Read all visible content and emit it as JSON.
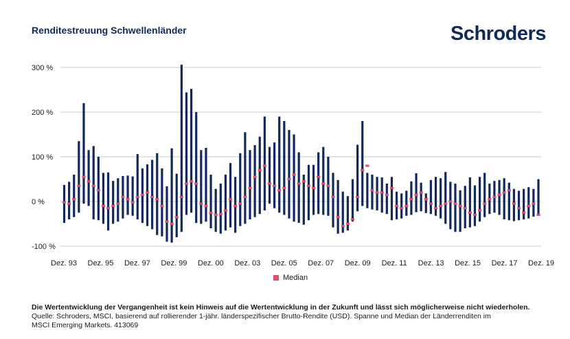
{
  "header": {
    "title": "Renditestreuung Schwellenländer",
    "logo": "Schroders"
  },
  "legend": {
    "median_label": "Median"
  },
  "colors": {
    "range_bar": "#0f2a5a",
    "median": "#e0506e",
    "grid": "#c8c8c8"
  },
  "footer": {
    "disclaimer": "Die Wertentwicklung der Vergangenheit ist kein Hinweis auf die Wertentwicklung in der Zukunft und lässt sich möglicherweise nicht wiederholen.",
    "source_line1": "Quelle: Schroders, MSCI, basierend auf rollierender 1-jähr. länderspezifischer Brutto-Rendite (USD). Spanne und Median der Länderrenditen im",
    "source_line2": "MSCI Emerging Markets. 413069"
  },
  "chart_data": {
    "type": "range_bar",
    "y_ticks": [
      {
        "value": 300,
        "label": "300 %"
      },
      {
        "value": 200,
        "label": "200 %"
      },
      {
        "value": 100,
        "label": "100 %"
      },
      {
        "value": 0,
        "label": "0 %"
      },
      {
        "value": -100,
        "label": "-100 %"
      }
    ],
    "ylim": [
      -100,
      300
    ],
    "x_tick_labels": [
      "Dez. 93",
      "Dez. 95",
      "Dez. 97",
      "Dez. 99",
      "Dez. 00",
      "Dez. 03",
      "Dez. 05",
      "Dez. 07",
      "Dez. 09",
      "Dez. 11",
      "Dez. 13",
      "Dez. 15",
      "Dez. 17",
      "Dez. 19"
    ],
    "grid": true,
    "legend_position": "bottom-center",
    "series": [
      {
        "name": "Median",
        "kind": "median_marker"
      }
    ],
    "high": [
      37,
      44,
      60,
      135,
      220,
      115,
      124,
      100,
      64,
      65,
      46,
      52,
      57,
      58,
      56,
      106,
      74,
      83,
      93,
      108,
      74,
      34,
      119,
      62,
      306,
      244,
      252,
      200,
      115,
      120,
      60,
      28,
      40,
      60,
      86,
      55,
      108,
      155,
      115,
      126,
      145,
      190,
      122,
      132,
      190,
      180,
      160,
      150,
      110,
      60,
      82,
      82,
      110,
      122,
      100,
      64,
      48,
      22,
      12,
      50,
      127,
      180,
      64,
      60,
      55,
      54,
      40,
      55,
      22,
      18,
      24,
      45,
      63,
      42,
      18,
      48,
      55,
      52,
      66,
      44,
      40,
      25,
      35,
      54,
      36,
      55,
      64,
      40,
      46,
      48,
      52,
      42,
      28,
      24,
      28,
      32,
      28,
      50
    ],
    "low": [
      -48,
      -40,
      -35,
      -25,
      -5,
      -10,
      -40,
      -42,
      -50,
      -65,
      -50,
      -45,
      -38,
      -30,
      -32,
      -40,
      -48,
      -55,
      -62,
      -75,
      -78,
      -90,
      -92,
      -80,
      -68,
      -30,
      -25,
      -48,
      -50,
      -45,
      -60,
      -68,
      -72,
      -65,
      -58,
      -70,
      -55,
      -50,
      -40,
      -35,
      -28,
      -20,
      -5,
      -15,
      -25,
      -30,
      -38,
      -45,
      -48,
      -52,
      -42,
      -30,
      -28,
      -30,
      -32,
      -58,
      -72,
      -70,
      -65,
      -45,
      -22,
      -10,
      -15,
      -18,
      -20,
      -25,
      -28,
      -42,
      -40,
      -38,
      -32,
      -30,
      -24,
      -22,
      -26,
      -28,
      -32,
      -38,
      -50,
      -62,
      -68,
      -68,
      -60,
      -58,
      -55,
      -45,
      -35,
      -28,
      -25,
      -30,
      -40,
      -42,
      -44,
      -42,
      -40,
      -38,
      -34,
      -28
    ],
    "median": [
      -2,
      -5,
      5,
      35,
      55,
      45,
      35,
      25,
      -10,
      -15,
      -10,
      -5,
      10,
      5,
      -2,
      10,
      15,
      20,
      10,
      5,
      -10,
      -45,
      -50,
      -35,
      10,
      40,
      45,
      40,
      -5,
      -10,
      -25,
      -30,
      -28,
      -20,
      5,
      -10,
      -5,
      10,
      30,
      55,
      70,
      80,
      40,
      35,
      25,
      30,
      50,
      60,
      40,
      45,
      35,
      30,
      55,
      40,
      35,
      10,
      -35,
      -55,
      -50,
      -40,
      10,
      70,
      80,
      25,
      20,
      20,
      15,
      30,
      -10,
      -15,
      -10,
      5,
      15,
      20,
      5,
      -5,
      -15,
      -10,
      -5,
      0,
      -5,
      -10,
      -15,
      -25,
      -30,
      -20,
      -5,
      5,
      10,
      15,
      20,
      25,
      -5,
      -15,
      -25,
      -10,
      -5,
      -30
    ]
  }
}
